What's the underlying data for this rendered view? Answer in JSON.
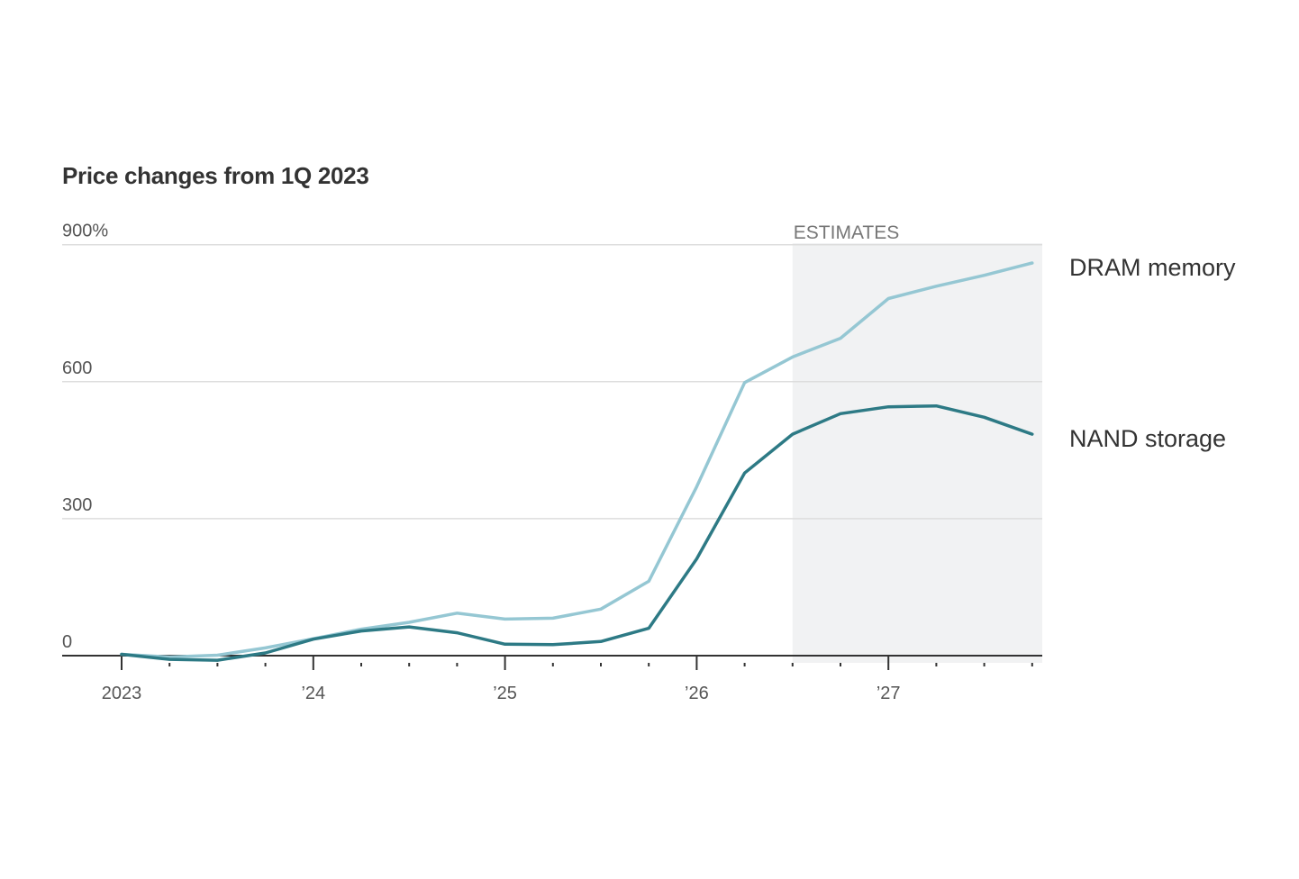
{
  "chart_data": {
    "type": "line",
    "title": "Price changes from 1Q 2023",
    "ylim": [
      0,
      900
    ],
    "y_ticks": [
      {
        "value": 900,
        "label": "900%"
      },
      {
        "value": 600,
        "label": "600"
      },
      {
        "value": 300,
        "label": "300"
      },
      {
        "value": 0,
        "label": "0"
      }
    ],
    "x_labels": [
      {
        "quarter_index": 0,
        "label": "2023"
      },
      {
        "quarter_index": 4,
        "label": "’24"
      },
      {
        "quarter_index": 8,
        "label": "’25"
      },
      {
        "quarter_index": 12,
        "label": "’26"
      },
      {
        "quarter_index": 16,
        "label": "’27"
      }
    ],
    "x": [
      "1Q 2023",
      "2Q 2023",
      "3Q 2023",
      "4Q 2023",
      "1Q 2024",
      "2Q 2024",
      "3Q 2024",
      "4Q 2024",
      "1Q 2025",
      "2Q 2025",
      "3Q 2025",
      "4Q 2025",
      "1Q 2026",
      "2Q 2026",
      "3Q 2026",
      "4Q 2026",
      "1Q 2027",
      "2Q 2027",
      "3Q 2027",
      "4Q 2027"
    ],
    "estimates_label": "ESTIMATES",
    "estimates_start_index": 14.0,
    "series": [
      {
        "name": "DRAM memory",
        "color": "#95c7d3",
        "values": [
          3,
          -3,
          1,
          17,
          37,
          58,
          73,
          93,
          80,
          82,
          102,
          163,
          370,
          598,
          654,
          695,
          782,
          809,
          833,
          860
        ]
      },
      {
        "name": "NAND storage",
        "color": "#2d7a85",
        "values": [
          3,
          -8,
          -10,
          6,
          36,
          54,
          63,
          50,
          25,
          24,
          31,
          60,
          212,
          400,
          485,
          530,
          545,
          547,
          522,
          485
        ]
      }
    ],
    "colors": {
      "gridline": "#dddddd",
      "axis": "#333333",
      "estimates_band": "#f1f2f3"
    }
  }
}
